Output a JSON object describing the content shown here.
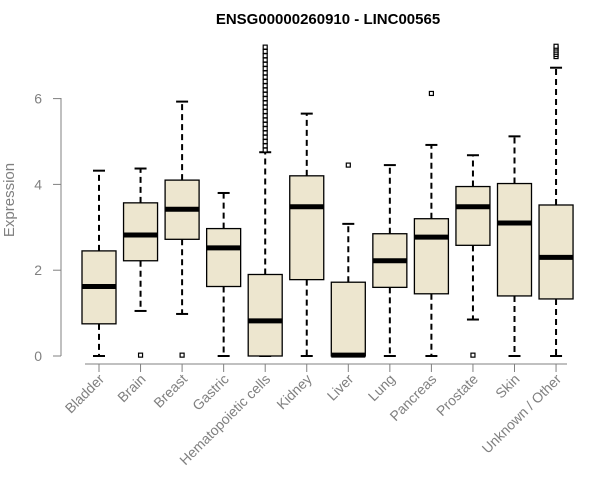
{
  "chart_data": {
    "type": "box",
    "title": "ENSG00000260910 - LINC00565",
    "xlabel": "",
    "ylabel": "Expression",
    "ylim": [
      0,
      7.2
    ],
    "yticks": [
      0,
      2,
      4,
      6
    ],
    "grid": false,
    "legend": "none",
    "colors": {
      "box_fill": "#ede6cf",
      "box_stroke": "#000000",
      "axis": "#808080"
    },
    "categories": [
      "Bladder",
      "Brain",
      "Breast",
      "Gastric",
      "Hematopoietic cells",
      "Kidney",
      "Liver",
      "Lung",
      "Pancreas",
      "Prostate",
      "Skin",
      "Unknown / Other"
    ],
    "boxes": [
      {
        "category": "Bladder",
        "min": 0.0,
        "q1": 0.75,
        "median": 1.62,
        "q3": 2.45,
        "max": 4.32,
        "outliers": []
      },
      {
        "category": "Brain",
        "min": 1.05,
        "q1": 2.22,
        "median": 2.82,
        "q3": 3.57,
        "max": 4.37,
        "outliers": [
          0.02
        ]
      },
      {
        "category": "Breast",
        "min": 0.98,
        "q1": 2.72,
        "median": 3.42,
        "q3": 4.1,
        "max": 5.93,
        "outliers": [
          0.02
        ]
      },
      {
        "category": "Gastric",
        "min": 0.0,
        "q1": 1.62,
        "median": 2.52,
        "q3": 2.97,
        "max": 3.8,
        "outliers": []
      },
      {
        "category": "Hematopoietic cells",
        "min": 0.0,
        "q1": 0.0,
        "median": 0.82,
        "q3": 1.9,
        "max": 4.75,
        "outliers": [
          4.8,
          4.9,
          5.0,
          5.1,
          5.2,
          5.3,
          5.4,
          5.5,
          5.6,
          5.7,
          5.8,
          5.9,
          6.0,
          6.1,
          6.2,
          6.3,
          6.4,
          6.5,
          6.6,
          6.7,
          6.8,
          6.9,
          7.0,
          7.1,
          7.2
        ]
      },
      {
        "category": "Kidney",
        "min": 0.0,
        "q1": 1.78,
        "median": 3.48,
        "q3": 4.2,
        "max": 5.65,
        "outliers": []
      },
      {
        "category": "Liver",
        "min": 0.0,
        "q1": 0.0,
        "median": 0.02,
        "q3": 1.72,
        "max": 3.08,
        "outliers": [
          4.45
        ]
      },
      {
        "category": "Lung",
        "min": 0.0,
        "q1": 1.6,
        "median": 2.22,
        "q3": 2.85,
        "max": 4.45,
        "outliers": []
      },
      {
        "category": "Pancreas",
        "min": 0.0,
        "q1": 1.45,
        "median": 2.77,
        "q3": 3.2,
        "max": 4.92,
        "outliers": [
          6.12
        ]
      },
      {
        "category": "Prostate",
        "min": 0.85,
        "q1": 2.58,
        "median": 3.48,
        "q3": 3.95,
        "max": 4.68,
        "outliers": [
          0.02
        ]
      },
      {
        "category": "Skin",
        "min": 0.0,
        "q1": 1.4,
        "median": 3.1,
        "q3": 4.02,
        "max": 5.12,
        "outliers": []
      },
      {
        "category": "Unknown / Other",
        "min": 0.0,
        "q1": 1.33,
        "median": 2.3,
        "q3": 3.52,
        "max": 6.72,
        "outliers": [
          6.98,
          7.03,
          7.08,
          7.13,
          7.18,
          7.22
        ]
      }
    ]
  }
}
